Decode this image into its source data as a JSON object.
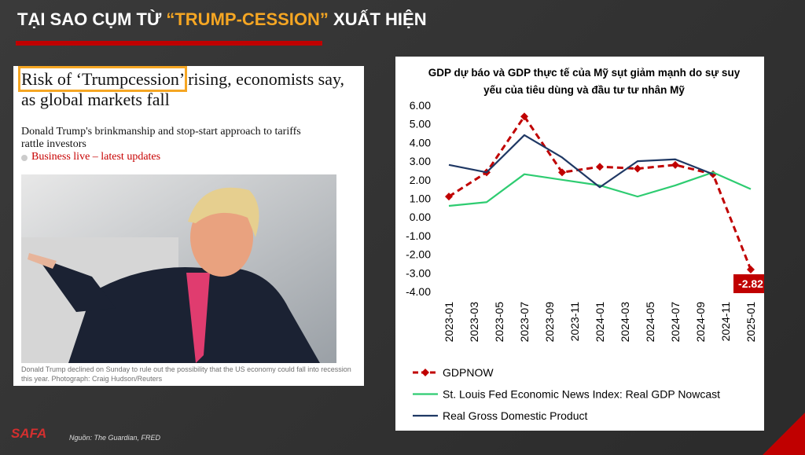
{
  "slide": {
    "title_prefix": "TẠI SAO CỤM TỪ ",
    "title_highlight": "“TRUMP-CESSION”",
    "title_suffix": " XUẤT HIỆN",
    "source": "Nguồn: The Guardian, FRED",
    "logo": "SAFA"
  },
  "article": {
    "headline_highlight": "Risk of ‘Trumpcession’",
    "headline_rest": "rising, economists say, as global markets fall",
    "standfirst": "Donald Trump's brinkmanship and stop-start approach to tariffs rattle investors",
    "link": "Business live – latest updates",
    "caption": "Donald Trump declined on Sunday to rule out the possibility that the US economy could fall into recession this year. Photograph: Craig Hudson/Reuters"
  },
  "chart_data": {
    "type": "line",
    "title": "GDP dự báo và GDP thực tế của Mỹ sụt giảm mạnh do sự suy yếu của tiêu dùng và đầu tư tư nhân Mỹ",
    "x": [
      "2023-01",
      "2023-04",
      "2023-07",
      "2023-10",
      "2024-01",
      "2024-04",
      "2024-07",
      "2024-10",
      "2025-01"
    ],
    "xticks": [
      "2023-01",
      "2023-03",
      "2023-05",
      "2023-07",
      "2023-09",
      "2023-11",
      "2024-01",
      "2024-03",
      "2024-05",
      "2024-07",
      "2024-09",
      "2024-11",
      "2025-01"
    ],
    "ylim": [
      -4,
      6
    ],
    "yticks": [
      {
        "value": 6,
        "label": "6.00"
      },
      {
        "value": 5,
        "label": "5.00"
      },
      {
        "value": 4,
        "label": "4.00"
      },
      {
        "value": 3,
        "label": "3.00"
      },
      {
        "value": 2,
        "label": "2.00"
      },
      {
        "value": 1,
        "label": "1.00"
      },
      {
        "value": 0,
        "label": "0.00"
      },
      {
        "value": -1,
        "label": "-1.00"
      },
      {
        "value": -2,
        "label": "-2.00"
      },
      {
        "value": -3,
        "label": "-3.00"
      },
      {
        "value": -4,
        "label": "-4.00"
      }
    ],
    "series": [
      {
        "name": "GDPNOW",
        "color": "#c00000",
        "dashed": true,
        "marker": "diamond",
        "values": [
          1.1,
          2.4,
          5.4,
          2.4,
          2.7,
          2.6,
          2.8,
          2.3,
          -2.82
        ]
      },
      {
        "name": "St. Louis Fed Economic News Index: Real GDP Nowcast",
        "color": "#2ecc71",
        "values": [
          0.6,
          0.8,
          2.3,
          2.0,
          1.7,
          1.1,
          1.7,
          2.4,
          1.5
        ]
      },
      {
        "name": "Real Gross Domestic Product",
        "color": "#1f3864",
        "values": [
          2.8,
          2.4,
          4.4,
          3.2,
          1.6,
          3.0,
          3.1,
          2.3,
          null
        ]
      }
    ]
  }
}
